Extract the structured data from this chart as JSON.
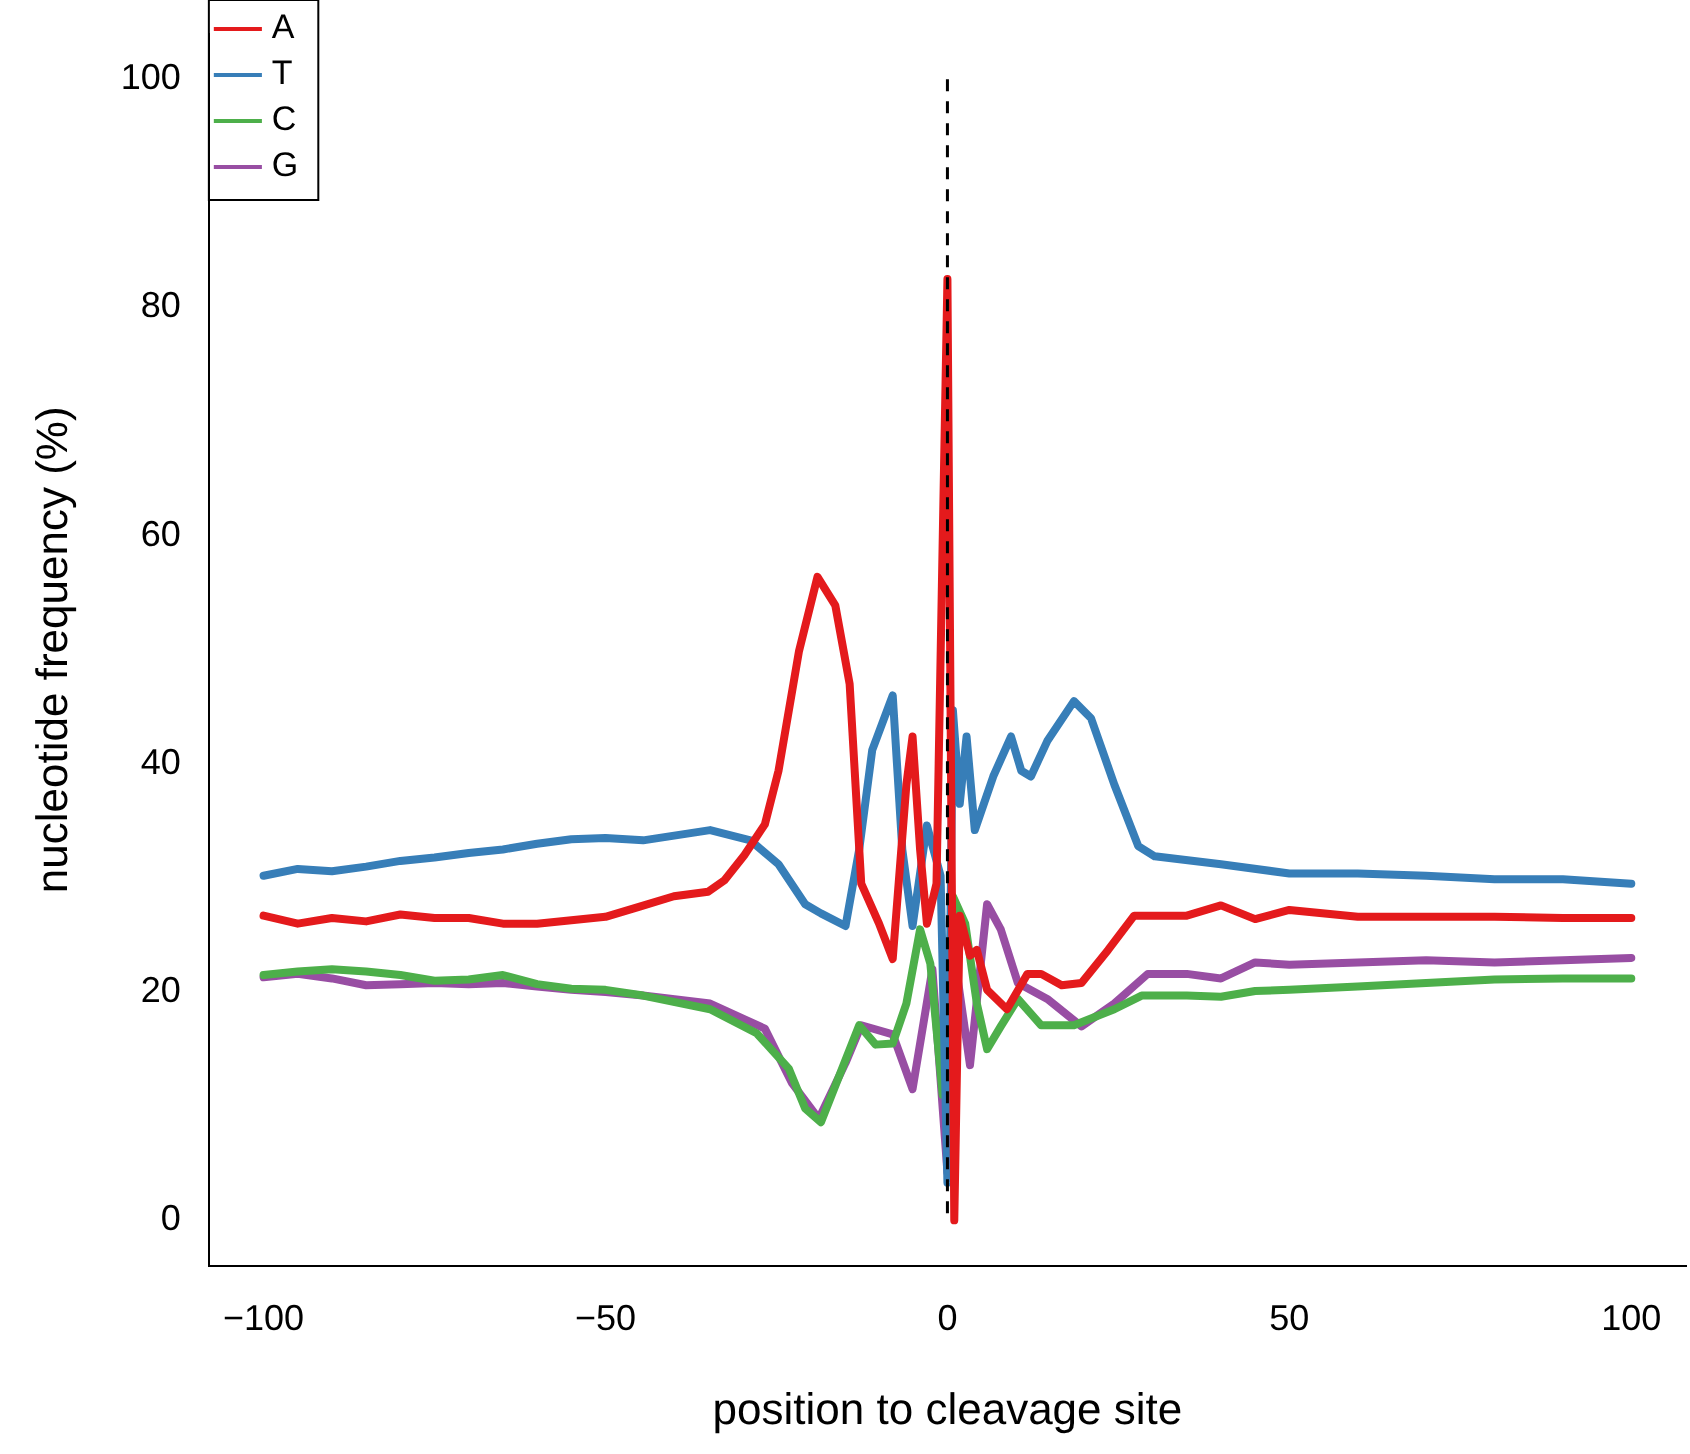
{
  "chart_data": {
    "type": "line",
    "xlabel": "position to cleavage site",
    "ylabel": "nucleotide frequency (%)",
    "xlim": [
      -108,
      108
    ],
    "ylim": [
      -4,
      104
    ],
    "xticks": [
      -100,
      -50,
      0,
      50,
      100
    ],
    "yticks": [
      0,
      20,
      40,
      60,
      80,
      100
    ],
    "grid": false,
    "legend": "top left",
    "marker": "none",
    "line_style": "solid",
    "ref_lines": [
      {
        "axis": "x",
        "value": 0,
        "line_style": "dashed",
        "color": "#000000"
      }
    ],
    "series": [
      {
        "name": "A",
        "color": "#e41a1c",
        "x": [
          -100,
          -95,
          -90,
          -85,
          -80,
          -75,
          -70,
          -65,
          -60,
          -55,
          -50,
          -45,
          -40,
          -35,
          -32.6,
          -29.7,
          -26.7,
          -24.7,
          -21.7,
          -19,
          -16.4,
          -14.3,
          -12.6,
          -10,
          -8,
          -6,
          -5.1,
          -4,
          -3,
          -1.6,
          0,
          1,
          1.8,
          3.3,
          4.3,
          5.8,
          8.7,
          11.7,
          13.7,
          16.7,
          19.6,
          23.5,
          27.3,
          35,
          40,
          45,
          50,
          60,
          70,
          80,
          90,
          100
        ],
        "values": [
          26.7,
          26,
          26.5,
          26.2,
          26.8,
          26.5,
          26.5,
          26,
          26,
          26.3,
          26.6,
          27.5,
          28.4,
          28.8,
          29.8,
          32,
          34.7,
          39.4,
          49.9,
          56.4,
          53.9,
          47,
          29.5,
          26,
          22.9,
          38.2,
          42.4,
          32.5,
          26,
          29.5,
          82.5,
          0,
          26.7,
          23.2,
          23.7,
          20.2,
          18.5,
          21.6,
          21.6,
          20.6,
          20.8,
          23.7,
          26.7,
          26.7,
          27.6,
          26.4,
          27.2,
          26.6,
          26.6,
          26.6,
          26.5,
          26.5
        ]
      },
      {
        "name": "T",
        "color": "#377eb8",
        "x": [
          -100,
          -95,
          -90,
          -85,
          -80,
          -75,
          -70,
          -65,
          -60,
          -55,
          -50,
          -44.5,
          -34.7,
          -28.8,
          -24.7,
          -20.8,
          -18.5,
          -14.9,
          -12.9,
          -11,
          -8,
          -6.6,
          -5.1,
          -3,
          -1,
          0,
          0.8,
          1.8,
          2.8,
          4,
          6.7,
          9.3,
          10.8,
          12.2,
          14.6,
          18.5,
          21,
          24.4,
          27.9,
          30.3,
          40,
          50,
          60,
          70,
          80,
          90,
          100
        ],
        "values": [
          30.2,
          30.8,
          30.6,
          31,
          31.5,
          31.8,
          32.2,
          32.5,
          33,
          33.4,
          33.5,
          33.3,
          34.2,
          33.3,
          31.2,
          27.7,
          26.9,
          25.8,
          32.5,
          41.2,
          46,
          32.5,
          25.8,
          34.6,
          30.2,
          3.3,
          44.7,
          36.5,
          42.4,
          34.2,
          38.9,
          42.4,
          39.4,
          38.9,
          42,
          45.5,
          44,
          38.2,
          32.8,
          31.9,
          31.2,
          30.4,
          30.4,
          30.2,
          29.9,
          29.9,
          29.5
        ]
      },
      {
        "name": "C",
        "color": "#4daf4a",
        "x": [
          -100,
          -95,
          -90,
          -85,
          -80,
          -75,
          -70,
          -65,
          -60,
          -55,
          -50,
          -44.5,
          -34.7,
          -27.9,
          -23.2,
          -20.8,
          -18.5,
          -15.8,
          -12.9,
          -10.5,
          -8,
          -6,
          -4,
          -2.5,
          -0.7,
          0.8,
          2.6,
          4.3,
          5.8,
          7.8,
          10.3,
          13.7,
          18.5,
          24.4,
          28.4,
          35,
          40,
          45,
          50,
          60,
          70,
          80,
          90,
          100
        ],
        "values": [
          21.5,
          21.8,
          22,
          21.8,
          21.5,
          21,
          21.1,
          21.5,
          20.7,
          20.3,
          20.2,
          19.7,
          18.5,
          16.4,
          13.3,
          9.8,
          8.6,
          12.7,
          17.1,
          15.4,
          15.5,
          19,
          25.5,
          22.5,
          11,
          28.4,
          26,
          19,
          15,
          17,
          19.4,
          17.1,
          17.1,
          18.5,
          19.7,
          19.7,
          19.6,
          20.1,
          20.2,
          20.5,
          20.8,
          21.1,
          21.2,
          21.2
        ]
      },
      {
        "name": "G",
        "color": "#984ea3",
        "x": [
          -100,
          -95,
          -90,
          -85,
          -80,
          -75,
          -70,
          -65,
          -60,
          -55,
          -50,
          -44.5,
          -34.7,
          -26.7,
          -22.7,
          -18.8,
          -14.9,
          -12.6,
          -8,
          -5.1,
          -2.2,
          0,
          1.3,
          3.3,
          5.8,
          7.8,
          10.3,
          14.6,
          19.6,
          24.4,
          29.3,
          35,
          40,
          45,
          50,
          60,
          70,
          80,
          90,
          100
        ],
        "values": [
          21.3,
          21.6,
          21.2,
          20.6,
          20.7,
          20.8,
          20.7,
          20.8,
          20.5,
          20.2,
          20,
          19.7,
          19,
          16.8,
          12,
          8.9,
          13.8,
          17.1,
          16.3,
          11.5,
          22,
          4.2,
          22,
          13.6,
          27.7,
          25.5,
          20.8,
          19.4,
          17,
          19,
          21.6,
          21.6,
          21.2,
          22.6,
          22.4,
          22.6,
          22.8,
          22.6,
          22.8,
          23
        ]
      }
    ]
  }
}
